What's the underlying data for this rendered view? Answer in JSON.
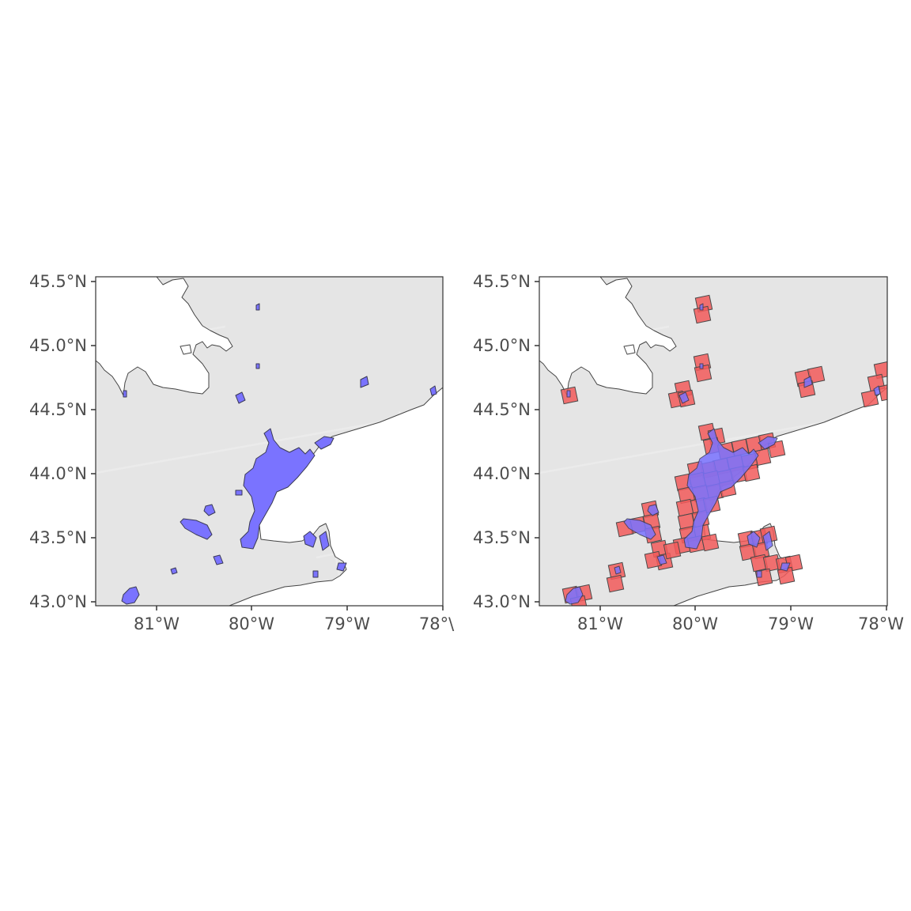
{
  "colors": {
    "panel_background": "#e5e5e5",
    "water": "#ffffff",
    "urban_area_fill": "#7a73ff",
    "grid_cell_fill": "#f25a5a",
    "graticule": "#ebebeb",
    "axis_text": "#4d4d4d"
  },
  "chart_data": [
    {
      "type": "map",
      "panel": "left",
      "layers": [
        "land",
        "lakes",
        "urban-areas"
      ],
      "xlim": [
        -81.6,
        -78.0
      ],
      "ylim": [
        42.96,
        45.5
      ],
      "x_ticks": [
        {
          "value": -81,
          "label": "81°W"
        },
        {
          "value": -80,
          "label": "80°W"
        },
        {
          "value": -79,
          "label": "79°W"
        },
        {
          "value": -78,
          "label": "78°\\"
        }
      ],
      "y_ticks": [
        {
          "value": 45.5,
          "label": "45.5°N"
        },
        {
          "value": 45.0,
          "label": "45.0°N"
        },
        {
          "value": 44.5,
          "label": "44.5°N"
        },
        {
          "value": 44.0,
          "label": "44.0°N"
        },
        {
          "value": 43.5,
          "label": "43.5°N"
        },
        {
          "value": 43.0,
          "label": "43.0°N"
        }
      ],
      "grid": true
    },
    {
      "type": "map",
      "panel": "right",
      "layers": [
        "land",
        "lakes",
        "grid-cells",
        "urban-areas"
      ],
      "xlim": [
        -81.6,
        -78.0
      ],
      "ylim": [
        42.96,
        45.5
      ],
      "x_ticks": [
        {
          "value": -81,
          "label": "81°W"
        },
        {
          "value": -80,
          "label": "80°W"
        },
        {
          "value": -79,
          "label": "79°W"
        },
        {
          "value": -78,
          "label": "78°W"
        }
      ],
      "y_ticks": [
        {
          "value": 45.5,
          "label": "45.5°N"
        },
        {
          "value": 45.0,
          "label": "45.0°N"
        },
        {
          "value": 44.5,
          "label": "44.5°N"
        },
        {
          "value": 44.0,
          "label": "44.0°N"
        },
        {
          "value": 43.5,
          "label": "43.5°N"
        },
        {
          "value": 43.0,
          "label": "43.0°N"
        }
      ],
      "grid": true
    }
  ]
}
